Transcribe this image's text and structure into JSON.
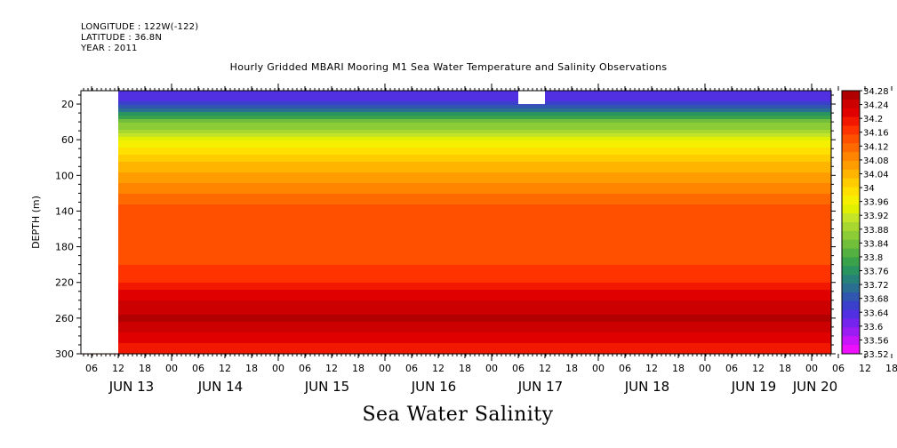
{
  "header": {
    "longitude": "LONGITUDE : 122W(-122)",
    "latitude": "LATITUDE : 36.8N",
    "year": "YEAR : 2011"
  },
  "chart_data": {
    "type": "heatmap",
    "title": "Hourly Gridded MBARI Mooring M1 Sea Water Temperature and Salinity Observations",
    "bottom_title": "Sea Water Salinity",
    "ylabel": "DEPTH (m)",
    "y_inverted": true,
    "ylim": [
      300,
      5
    ],
    "y_ticks": [
      20,
      60,
      100,
      140,
      180,
      220,
      260,
      300
    ],
    "x_tick_labels": [
      "06",
      "12",
      "18",
      "00",
      "06",
      "12",
      "18",
      "00",
      "06",
      "12",
      "18",
      "00",
      "06",
      "12",
      "18",
      "00",
      "06",
      "12",
      "18",
      "00",
      "06",
      "12",
      "18",
      "00",
      "06",
      "12",
      "18",
      "00",
      "06",
      "12",
      "18",
      "00"
    ],
    "date_labels": [
      "JUN 13",
      "JUN 14",
      "JUN 15",
      "JUN 16",
      "JUN 17",
      "JUN 18",
      "JUN 19",
      "JUN 20"
    ],
    "colorbar": {
      "levels": [
        34.28,
        34.24,
        34.2,
        34.16,
        34.12,
        34.08,
        34.04,
        34,
        33.96,
        33.92,
        33.88,
        33.84,
        33.8,
        33.76,
        33.72,
        33.68,
        33.64,
        33.6,
        33.56,
        33.52
      ],
      "colors": [
        "#b00000",
        "#cc0000",
        "#e00000",
        "#f21800",
        "#ff3300",
        "#ff5000",
        "#ff6a00",
        "#ff8400",
        "#ff9c00",
        "#ffb400",
        "#ffcc00",
        "#ffe000",
        "#f5f000",
        "#e0f000",
        "#c4e428",
        "#a8d830",
        "#8ccc36",
        "#70be3a",
        "#54b040",
        "#3aa24a",
        "#2a9460",
        "#268278",
        "#2a6e92",
        "#3056b0",
        "#3a40cc",
        "#5030e0",
        "#7424ec",
        "#9c1cf4",
        "#c814f8",
        "#ee10fc"
      ]
    },
    "depth_profile": [
      {
        "depth": 5,
        "value": 33.62
      },
      {
        "depth": 20,
        "value": 33.66
      },
      {
        "depth": 40,
        "value": 33.84
      },
      {
        "depth": 60,
        "value": 33.94
      },
      {
        "depth": 80,
        "value": 34.02
      },
      {
        "depth": 100,
        "value": 34.06
      },
      {
        "depth": 120,
        "value": 34.1
      },
      {
        "depth": 140,
        "value": 34.14
      },
      {
        "depth": 160,
        "value": 34.14
      },
      {
        "depth": 180,
        "value": 34.13
      },
      {
        "depth": 200,
        "value": 34.15
      },
      {
        "depth": 220,
        "value": 34.18
      },
      {
        "depth": 240,
        "value": 34.23
      },
      {
        "depth": 260,
        "value": 34.26
      },
      {
        "depth": 280,
        "value": 34.22
      },
      {
        "depth": 300,
        "value": 34.18
      }
    ],
    "missing_data": [
      {
        "x_from": "start",
        "x_to": "JUN 13 12",
        "depth_from": 5,
        "depth_to": 300
      },
      {
        "x_from": "JUN 17 06",
        "x_to": "JUN 17 12",
        "depth_from": 5,
        "depth_to": 20
      }
    ]
  }
}
